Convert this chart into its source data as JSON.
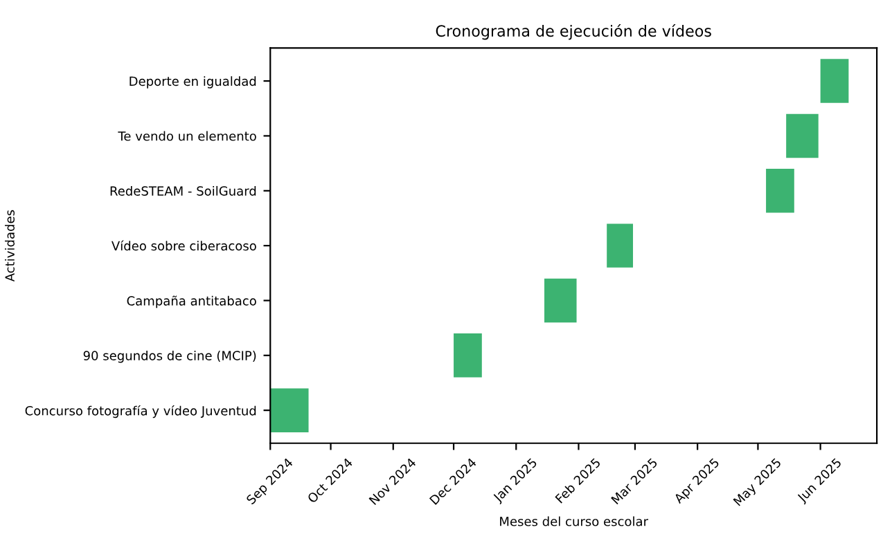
{
  "chart_data": {
    "type": "bar",
    "orientation": "horizontal",
    "title": "Cronograma de ejecución de vídeos",
    "xlabel": "Meses del curso escolar",
    "ylabel": "Actividades",
    "categories": [
      "Deporte en igualdad",
      "Te vendo un elemento",
      "RedeSTEAM - SoilGuard",
      "Vídeo sobre ciberacoso",
      "Campaña antitabaco",
      "90 segundos de cine (MCIP)",
      "Concurso fotografía y vídeo Juventud"
    ],
    "base": [
      20240,
      20223,
      20213,
      20134,
      20103,
      20058,
      19967
    ],
    "values": [
      14,
      16,
      14,
      13,
      16,
      14,
      19
    ],
    "color": "#3cb371",
    "xlim": [
      "2024-09-01",
      "2025-06-29"
    ],
    "xticks": [
      {
        "value": "2024-09-01",
        "label": "Sep 2024"
      },
      {
        "value": "2024-10-01",
        "label": "Oct 2024"
      },
      {
        "value": "2024-11-01",
        "label": "Nov 2024"
      },
      {
        "value": "2024-12-01",
        "label": "Dec 2024"
      },
      {
        "value": "2025-01-01",
        "label": "Jan 2025"
      },
      {
        "value": "2025-02-01",
        "label": "Feb 2025"
      },
      {
        "value": "2025-03-01",
        "label": "Mar 2025"
      },
      {
        "value": "2025-04-01",
        "label": "Apr 2025"
      },
      {
        "value": "2025-05-01",
        "label": "May 2025"
      },
      {
        "value": "2025-06-01",
        "label": "Jun 2025"
      }
    ],
    "grid": false,
    "legend": false
  }
}
